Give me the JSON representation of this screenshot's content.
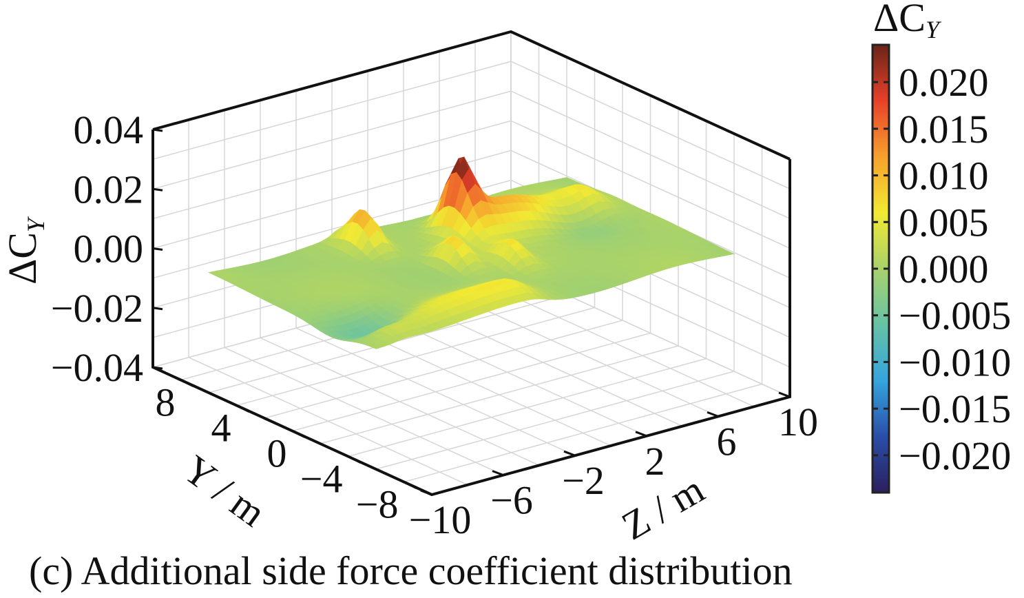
{
  "chart_data": {
    "type": "surface3d",
    "caption": "(c) Additional side force coefficient distribution",
    "x_axis": {
      "label": "Z / m",
      "ticks": [
        "-10",
        "-6",
        "-2",
        "2",
        "6",
        "10"
      ],
      "range": [
        -10,
        10
      ]
    },
    "y_axis": {
      "label": "Y / m",
      "ticks": [
        "-8",
        "-4",
        "0",
        "4",
        "8"
      ],
      "range": [
        -10,
        10
      ]
    },
    "z_axis": {
      "label": "ΔC_Y",
      "label_main": "ΔC",
      "label_sub": "Y",
      "ticks": [
        "-0.04",
        "-0.02",
        "0.00",
        "0.02",
        "0.04"
      ],
      "range": [
        -0.04,
        0.04
      ]
    },
    "colorbar": {
      "label_main": "ΔC",
      "label_sub": "Y",
      "ticks": [
        "0.020",
        "0.015",
        "0.010",
        "0.005",
        "0.000",
        "−0.005",
        "−0.010",
        "−0.015",
        "−0.020"
      ],
      "range": [
        -0.024,
        0.024
      ],
      "colormap": [
        "#2b1f5e",
        "#2a4ea8",
        "#35a5dd",
        "#66c2a5",
        "#a8d26b",
        "#f2e933",
        "#f6a02d",
        "#e8412a",
        "#6a2418"
      ]
    },
    "grid": true,
    "peaks": [
      {
        "z": -2.5,
        "y": 4.5,
        "value": 0.012
      },
      {
        "z": 2.0,
        "y": 3.5,
        "value": 0.018
      },
      {
        "z": -0.5,
        "y": 0.5,
        "value": 0.009
      },
      {
        "z": 1.5,
        "y": -1.0,
        "value": 0.007
      }
    ],
    "troughs": [
      {
        "z": 7.0,
        "y": 2.0,
        "value": -0.006
      },
      {
        "z": -8.0,
        "y": -3.0,
        "value": -0.007
      }
    ],
    "ridges": [
      {
        "from_z": 2.0,
        "to_z": 8.0,
        "y": 2.5,
        "value": 0.011
      },
      {
        "from_z": -8.0,
        "to_z": -1.5,
        "y": -4.5,
        "value": 0.006
      }
    ],
    "projection": {
      "corner_low": {
        "z": -10,
        "y": -10
      },
      "surface_extent_z": [
        -10,
        10
      ],
      "surface_extent_y": [
        -6,
        6
      ]
    }
  }
}
